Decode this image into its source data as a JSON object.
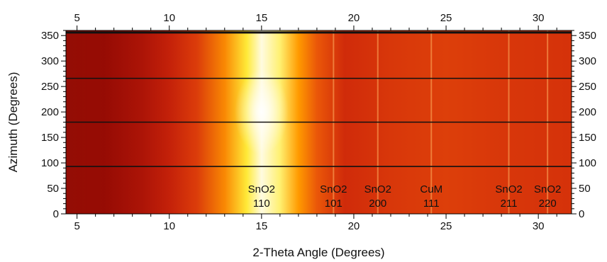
{
  "chart_data": {
    "type": "heatmap",
    "title": "",
    "xlabel": "2-Theta Angle (Degrees)",
    "ylabel": "Azimuth (Degrees)",
    "xlim": [
      4.4,
      31.8
    ],
    "ylim": [
      0,
      360
    ],
    "x_ticks": [
      5,
      10,
      15,
      20,
      25,
      30
    ],
    "y_ticks": [
      0,
      50,
      100,
      150,
      200,
      250,
      300,
      350
    ],
    "mirror_axes": true,
    "colormap": [
      "#8b0000",
      "#c81e0a",
      "#e8500a",
      "#ff9a00",
      "#ffe400",
      "#fffbe0"
    ],
    "intensity_profile": [
      {
        "x": 4.4,
        "v": 0.13
      },
      {
        "x": 6.5,
        "v": 0.1
      },
      {
        "x": 8.5,
        "v": 0.15
      },
      {
        "x": 10.0,
        "v": 0.22
      },
      {
        "x": 11.5,
        "v": 0.32
      },
      {
        "x": 13.0,
        "v": 0.55
      },
      {
        "x": 14.2,
        "v": 0.85
      },
      {
        "x": 15.0,
        "v": 1.0
      },
      {
        "x": 16.0,
        "v": 0.9
      },
      {
        "x": 17.0,
        "v": 0.6
      },
      {
        "x": 18.0,
        "v": 0.42
      },
      {
        "x": 19.5,
        "v": 0.25
      },
      {
        "x": 22.0,
        "v": 0.3
      },
      {
        "x": 25.0,
        "v": 0.33
      },
      {
        "x": 28.0,
        "v": 0.3
      },
      {
        "x": 31.8,
        "v": 0.28
      }
    ],
    "gaps_azimuth": [
      93,
      180,
      266,
      356
    ],
    "bright_spot": {
      "x": 15.0,
      "y": 200
    },
    "peaks": [
      {
        "name": "SnO2",
        "hkl": "110",
        "x": 15.0
      },
      {
        "name": "SnO2",
        "hkl": "101",
        "x": 18.9
      },
      {
        "name": "SnO2",
        "hkl": "200",
        "x": 21.3
      },
      {
        "name": "CuM",
        "hkl": "111",
        "x": 24.2
      },
      {
        "name": "SnO2",
        "hkl": "211",
        "x": 28.4
      },
      {
        "name": "SnO2",
        "hkl": "220",
        "x": 30.5
      }
    ]
  }
}
